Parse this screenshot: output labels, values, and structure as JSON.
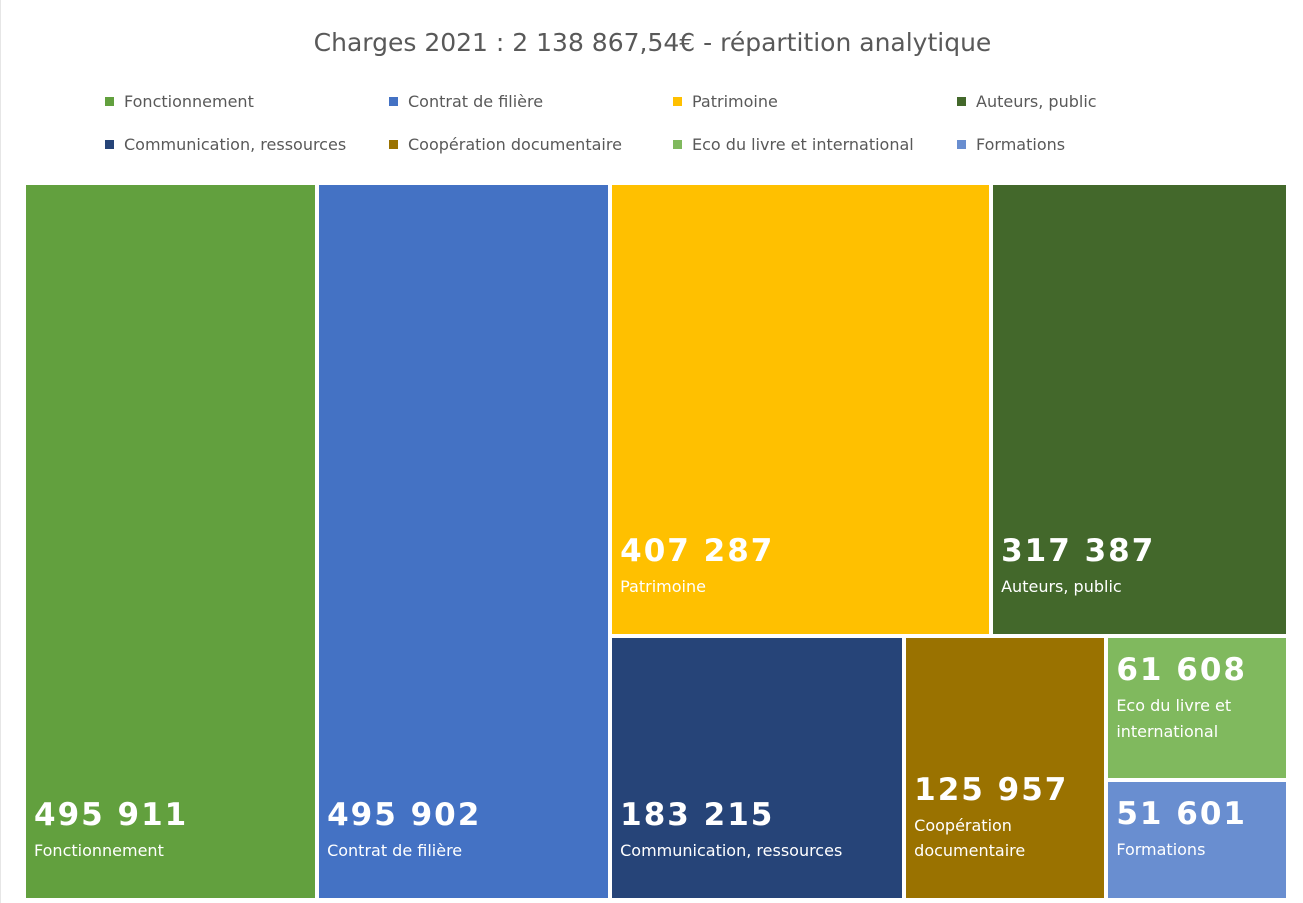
{
  "chart_data": {
    "type": "treemap",
    "title": "Charges 2021 : 2 138 867,54€ - répartition analytique",
    "categories": [
      "Fonctionnement",
      "Contrat de filière",
      "Patrimoine",
      "Auteurs, public",
      "Communication, ressources",
      "Coopération documentaire",
      "Eco du livre et international",
      "Formations"
    ],
    "values": [
      495911,
      495902,
      407287,
      317387,
      183215,
      125957,
      61608,
      51601
    ],
    "value_labels": [
      "495 911",
      "495 902",
      "407 287",
      "317 387",
      "183 215",
      "125 957",
      "61 608",
      "51 601"
    ],
    "colors": [
      "#62a03e",
      "#4472c4",
      "#ffc000",
      "#43682b",
      "#264478",
      "#9a7200",
      "#80b95e",
      "#698ed0"
    ],
    "legend": "top"
  }
}
